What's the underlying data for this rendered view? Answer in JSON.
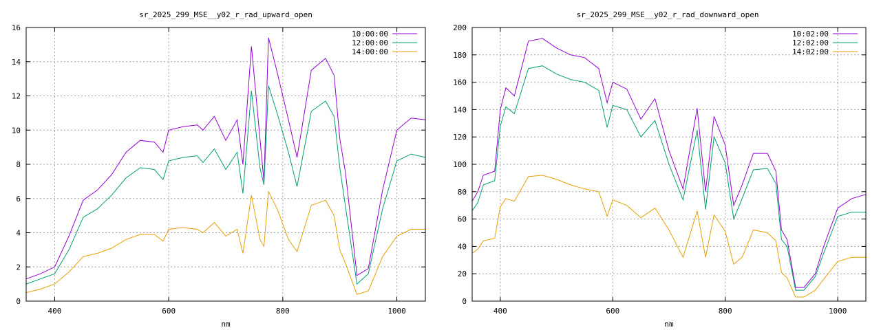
{
  "chart_data": [
    {
      "type": "line",
      "title": "sr_2025_299_MSE__y02_r_rad_upward_open",
      "xlabel": "nm",
      "ylabel": "",
      "xlim": [
        350,
        1050
      ],
      "ylim": [
        0,
        16
      ],
      "xticks": [
        "400",
        "600",
        "800",
        "1000"
      ],
      "xtick_values": [
        400,
        600,
        800,
        1000
      ],
      "yticks": [
        "0",
        "2",
        "4",
        "6",
        "8",
        "10",
        "12",
        "14",
        "16"
      ],
      "ytick_values": [
        0,
        2,
        4,
        6,
        8,
        10,
        12,
        14,
        16
      ],
      "grid": true,
      "legend_position": "top-right",
      "x": [
        350,
        375,
        400,
        425,
        450,
        475,
        500,
        525,
        550,
        575,
        590,
        600,
        625,
        650,
        660,
        680,
        700,
        720,
        730,
        745,
        760,
        767,
        775,
        790,
        810,
        825,
        850,
        875,
        890,
        900,
        910,
        930,
        950,
        975,
        1000,
        1025,
        1050
      ],
      "series": [
        {
          "name": "10:00:00",
          "color": "#9400d3",
          "values": [
            1.3,
            1.6,
            2.0,
            3.8,
            5.9,
            6.5,
            7.4,
            8.7,
            9.4,
            9.3,
            8.7,
            10.0,
            10.2,
            10.3,
            10.0,
            10.8,
            9.4,
            10.6,
            8.0,
            14.9,
            9.5,
            7.0,
            15.4,
            13.4,
            10.6,
            8.4,
            13.5,
            14.2,
            13.2,
            9.5,
            7.5,
            1.5,
            1.9,
            6.5,
            10.0,
            10.7,
            10.6
          ]
        },
        {
          "name": "12:00:00",
          "color": "#009e73",
          "values": [
            1.0,
            1.3,
            1.6,
            3.0,
            4.9,
            5.4,
            6.2,
            7.2,
            7.8,
            7.7,
            7.1,
            8.2,
            8.4,
            8.5,
            8.1,
            8.9,
            7.7,
            8.7,
            6.3,
            12.3,
            7.8,
            6.8,
            12.6,
            11.0,
            8.7,
            6.7,
            11.1,
            11.7,
            10.8,
            7.8,
            5.5,
            1.0,
            1.6,
            5.4,
            8.2,
            8.6,
            8.4
          ]
        },
        {
          "name": "14:00:00",
          "color": "#e69f00",
          "values": [
            0.5,
            0.7,
            1.0,
            1.7,
            2.6,
            2.8,
            3.1,
            3.6,
            3.9,
            3.9,
            3.5,
            4.2,
            4.3,
            4.2,
            4.0,
            4.6,
            3.8,
            4.2,
            2.8,
            6.2,
            3.6,
            3.2,
            6.4,
            5.4,
            3.6,
            2.9,
            5.6,
            5.9,
            5.0,
            3.0,
            2.2,
            0.4,
            0.6,
            2.6,
            3.8,
            4.2,
            4.2
          ]
        }
      ]
    },
    {
      "type": "line",
      "title": "sr_2025_299_MSE__y02_r_rad_downward_open",
      "xlabel": "nm",
      "ylabel": "",
      "xlim": [
        350,
        1050
      ],
      "ylim": [
        0,
        200
      ],
      "xticks": [
        "400",
        "600",
        "800",
        "1000"
      ],
      "xtick_values": [
        400,
        600,
        800,
        1000
      ],
      "yticks": [
        "0",
        "20",
        "40",
        "60",
        "80",
        "100",
        "120",
        "140",
        "160",
        "180",
        "200"
      ],
      "ytick_values": [
        0,
        20,
        40,
        60,
        80,
        100,
        120,
        140,
        160,
        180,
        200
      ],
      "grid": true,
      "legend_position": "top-right",
      "x": [
        350,
        360,
        370,
        390,
        400,
        410,
        425,
        450,
        475,
        500,
        525,
        550,
        575,
        590,
        600,
        625,
        650,
        675,
        700,
        725,
        750,
        765,
        780,
        800,
        815,
        830,
        850,
        875,
        890,
        900,
        910,
        925,
        940,
        960,
        975,
        1000,
        1025,
        1050
      ],
      "series": [
        {
          "name": "10:02:00",
          "color": "#9400d3",
          "values": [
            73,
            80,
            92,
            95,
            140,
            156,
            150,
            190,
            192,
            185,
            180,
            178,
            170,
            145,
            160,
            155,
            133,
            148,
            110,
            82,
            141,
            80,
            135,
            114,
            70,
            85,
            108,
            108,
            95,
            52,
            45,
            10,
            10,
            20,
            40,
            68,
            75,
            78
          ]
        },
        {
          "name": "12:02:00",
          "color": "#009e73",
          "values": [
            66,
            72,
            85,
            88,
            128,
            142,
            137,
            170,
            172,
            166,
            162,
            160,
            154,
            127,
            143,
            140,
            120,
            132,
            100,
            74,
            125,
            67,
            120,
            101,
            60,
            75,
            96,
            97,
            86,
            45,
            40,
            8,
            8,
            18,
            35,
            62,
            65,
            65
          ]
        },
        {
          "name": "14:02:00",
          "color": "#e69f00",
          "values": [
            35,
            38,
            44,
            46,
            69,
            75,
            73,
            91,
            92,
            89,
            85,
            82,
            80,
            62,
            74,
            70,
            61,
            68,
            52,
            32,
            66,
            32,
            63,
            51,
            27,
            32,
            52,
            50,
            44,
            21,
            17,
            3,
            3,
            8,
            16,
            29,
            32,
            32
          ]
        }
      ]
    }
  ]
}
